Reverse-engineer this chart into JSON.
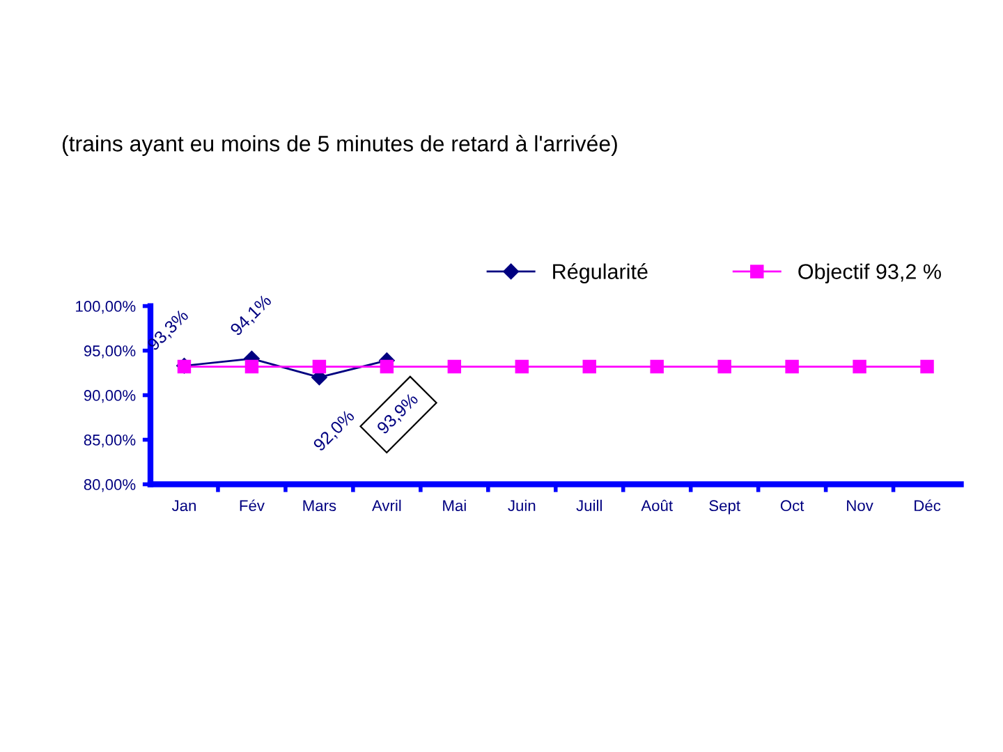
{
  "chart_data": {
    "type": "line",
    "title": "(trains ayant eu moins de 5 minutes de retard à l'arrivée)",
    "categories": [
      "Jan",
      "Fév",
      "Mars",
      "Avril",
      "Mai",
      "Juin",
      "Juill",
      "Août",
      "Sept",
      "Oct",
      "Nov",
      "Déc"
    ],
    "series": [
      {
        "name": "Régularité",
        "color": "#000080",
        "marker": "diamond",
        "values": [
          93.3,
          94.1,
          92.0,
          93.9,
          null,
          null,
          null,
          null,
          null,
          null,
          null,
          null
        ],
        "value_labels": [
          "93,3%",
          "94,1%",
          "92,0%",
          "93,9%",
          null,
          null,
          null,
          null,
          null,
          null,
          null,
          null
        ]
      },
      {
        "name": "Objectif 93,2 %",
        "color": "#ff00ff",
        "marker": "square",
        "values": [
          93.2,
          93.2,
          93.2,
          93.2,
          93.2,
          93.2,
          93.2,
          93.2,
          93.2,
          93.2,
          93.2,
          93.2
        ]
      }
    ],
    "ylim": [
      80,
      100
    ],
    "yticks": [
      {
        "value": 80,
        "label": "80,00%"
      },
      {
        "value": 85,
        "label": "85,00%"
      },
      {
        "value": 90,
        "label": "90,00%"
      },
      {
        "value": 95,
        "label": "95,00%"
      },
      {
        "value": 100,
        "label": "100,00%"
      }
    ],
    "grid": false,
    "legend": "top right"
  }
}
